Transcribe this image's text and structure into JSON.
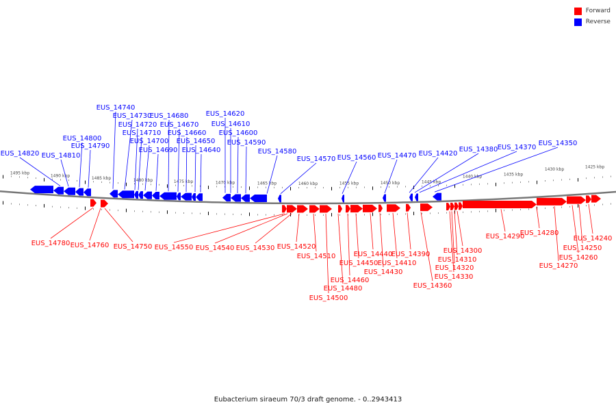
{
  "legend": {
    "forward_label": "Forward",
    "reverse_label": "Reverse",
    "forward_color": "#ff0000",
    "reverse_color": "#0000ff"
  },
  "caption": "Eubacterium siraeum 70/3 draft genome. - 0..2943413",
  "scale_labels": [
    "1495 kbp",
    "1490 kbp",
    "1485 kbp",
    "1480 kbp",
    "1475 kbp",
    "1470 kbp",
    "1465 kbp",
    "1460 kbp",
    "1455 kbp",
    "1450 kbp",
    "1445 kbp",
    "1440 kbp",
    "1435 kbp",
    "1430 kbp",
    "1425 kbp"
  ],
  "reverse_genes": [
    "EUS_14820",
    "EUS_14810",
    "EUS_14800",
    "EUS_14790",
    "EUS_14740",
    "EUS_14730",
    "EUS_14720",
    "EUS_14710",
    "EUS_14700",
    "EUS_14690",
    "EUS_14680",
    "EUS_14670",
    "EUS_14660",
    "EUS_14650",
    "EUS_14640",
    "EUS_14620",
    "EUS_14610",
    "EUS_14600",
    "EUS_14590",
    "EUS_14580",
    "EUS_14570",
    "EUS_14560",
    "EUS_14470",
    "EUS_14420",
    "EUS_14380",
    "EUS_14370",
    "EUS_14350"
  ],
  "forward_genes": [
    "EUS_14780",
    "EUS_14760",
    "EUS_14750",
    "EUS_14550",
    "EUS_14540",
    "EUS_14530",
    "EUS_14520",
    "EUS_14510",
    "EUS_14500",
    "EUS_14480",
    "EUS_14460",
    "EUS_14450",
    "EUS_14440",
    "EUS_14430",
    "EUS_14410",
    "EUS_14390",
    "EUS_14360",
    "EUS_14330",
    "EUS_14320",
    "EUS_14310",
    "EUS_14300",
    "EUS_14290",
    "EUS_14280",
    "EUS_14270",
    "EUS_14260",
    "EUS_14250",
    "EUS_14240"
  ]
}
